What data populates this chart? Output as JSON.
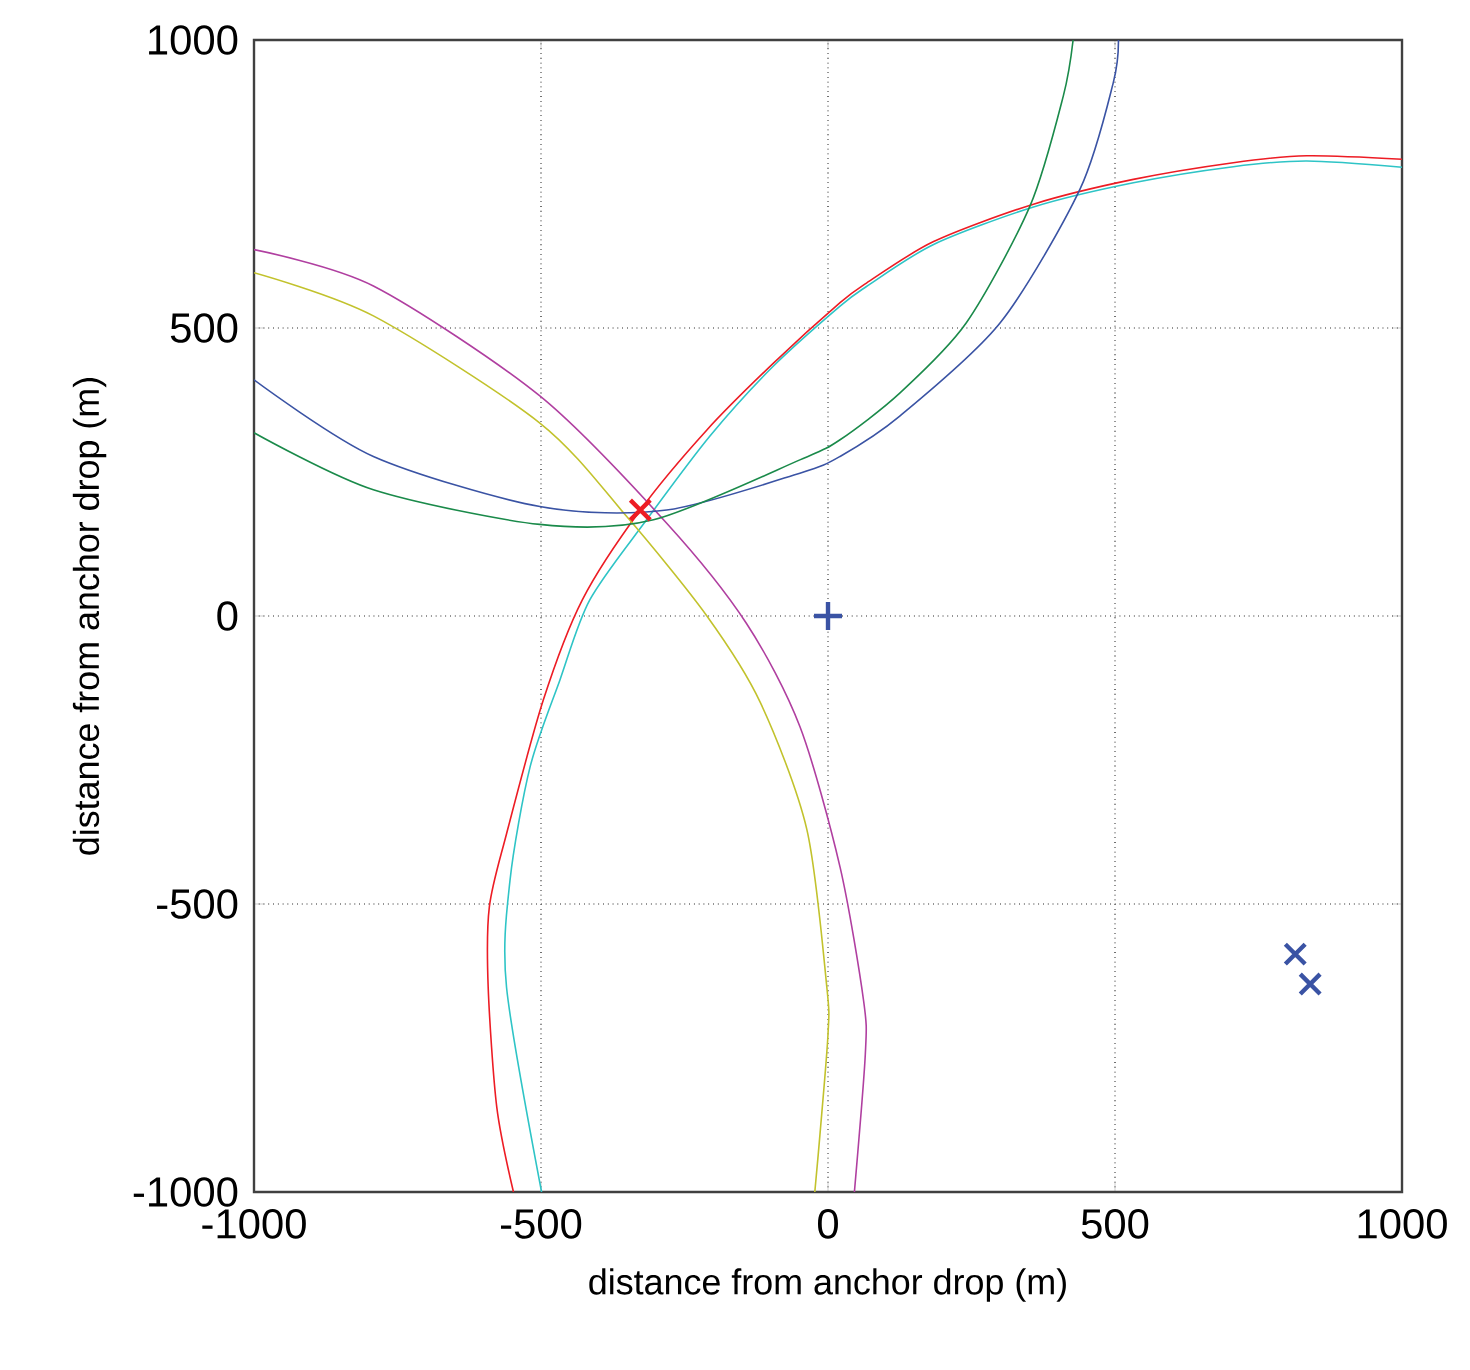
{
  "chart_data": {
    "type": "line",
    "xlabel": "distance from anchor drop (m)",
    "ylabel": "distance from anchor drop (m)",
    "xlim": [
      -1000,
      1000
    ],
    "ylim": [
      -1000,
      1000
    ],
    "xticks": [
      -1000,
      -500,
      0,
      500,
      1000
    ],
    "yticks": [
      -1000,
      -500,
      0,
      500,
      1000
    ],
    "grid": true,
    "line_style": "solid",
    "series": [
      {
        "color": "#ed1c24",
        "x": [
          -548,
          -577,
          -592,
          -590,
          -560,
          -496,
          -428,
          -327,
          -211,
          -95,
          21,
          67,
          184,
          358,
          532,
          706,
          834,
          1000
        ],
        "values": [
          -1000,
          -853,
          -645,
          -505,
          -378,
          -146,
          28,
          184,
          323,
          439,
          544,
          578,
          650,
          715,
          758,
          787,
          799,
          793
        ]
      },
      {
        "color": "#2ec4c6",
        "x": [
          -499,
          -560,
          -554,
          -519,
          -467,
          -415,
          -316,
          -206,
          -95,
          21,
          67,
          184,
          358,
          532,
          706,
          834,
          1000
        ],
        "values": [
          -1000,
          -645,
          -459,
          -262,
          -111,
          28,
          167,
          312,
          434,
          538,
          572,
          645,
          710,
          752,
          780,
          790,
          779
        ]
      },
      {
        "color": "#c2c22c",
        "x": [
          -1000,
          -792,
          -502,
          -351,
          -211,
          -118,
          -37,
          -2,
          0,
          -14,
          -23
        ],
        "values": [
          596,
          521,
          335,
          173,
          0,
          -150,
          -370,
          -645,
          -726,
          -900,
          -1000
        ]
      },
      {
        "color": "#b03fa0",
        "x": [
          -1000,
          -792,
          -502,
          -281,
          -142,
          -49,
          21,
          62,
          65,
          46
        ],
        "values": [
          636,
          573,
          382,
          161,
          -13,
          -192,
          -436,
          -668,
          -761,
          -1000
        ]
      },
      {
        "color": "#3a53a4",
        "x": [
          -1000,
          -792,
          -502,
          -281,
          -49,
          21,
          125,
          300,
          439,
          497,
          506
        ],
        "values": [
          410,
          277,
          190,
          184,
          248,
          277,
          347,
          509,
          741,
          926,
          1000
        ]
      },
      {
        "color": "#1a8a4a",
        "x": [
          -1000,
          -792,
          -502,
          -304,
          -49,
          21,
          125,
          241,
          352,
          410,
          427
        ],
        "values": [
          318,
          219,
          159,
          167,
          271,
          306,
          387,
          509,
          712,
          903,
          1000
        ]
      },
      {
        "type": "scatter",
        "marker": "cross",
        "color": "#ed1c24",
        "x": [
          -327
        ],
        "values": [
          184
        ]
      },
      {
        "type": "scatter",
        "marker": "plus",
        "color": "#3a53a4",
        "x": [
          0
        ],
        "values": [
          0
        ]
      },
      {
        "type": "scatter",
        "marker": "cross",
        "color": "#3a53a4",
        "x": [
          814,
          840
        ],
        "values": [
          -587,
          -639
        ]
      }
    ]
  }
}
